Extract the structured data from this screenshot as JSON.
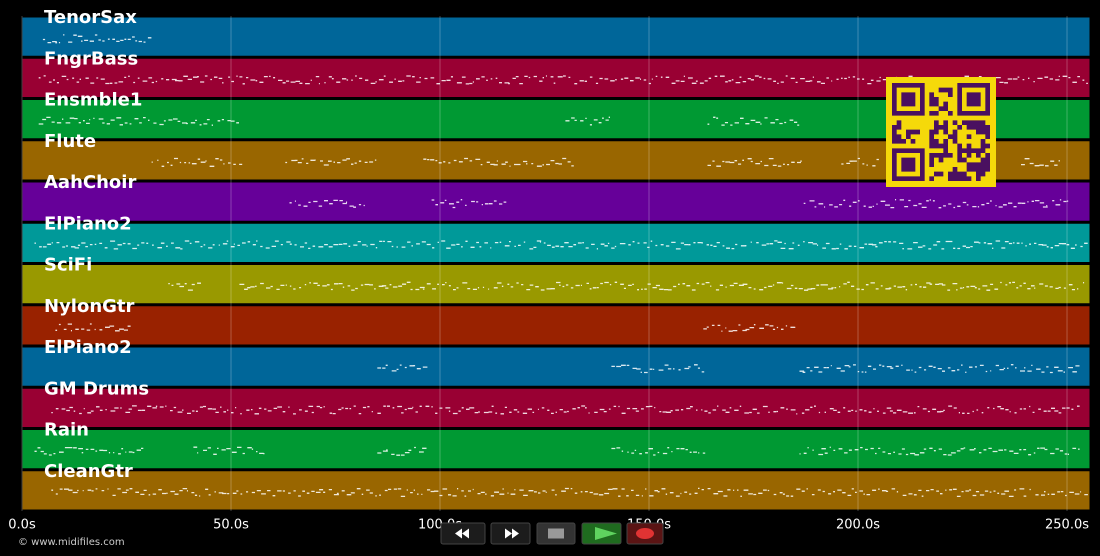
{
  "tracks": [
    {
      "name": "TenorSax",
      "color": "#006699",
      "spans": [
        [
          5,
          31
        ]
      ]
    },
    {
      "name": "FngrBass",
      "color": "#990033",
      "spans": [
        [
          4,
          255
        ]
      ]
    },
    {
      "name": "Ensmble1",
      "color": "#009933",
      "spans": [
        [
          4,
          52
        ],
        [
          130,
          141
        ],
        [
          164,
          187
        ]
      ]
    },
    {
      "name": "Flute",
      "color": "#996600",
      "spans": [
        [
          31,
          53
        ],
        [
          63,
          85
        ],
        [
          96,
          132
        ],
        [
          164,
          187
        ],
        [
          196,
          205
        ],
        [
          239,
          249
        ]
      ]
    },
    {
      "name": "AahChoir",
      "color": "#660099",
      "spans": [
        [
          64,
          82
        ],
        [
          98,
          116
        ],
        [
          187,
          251
        ]
      ]
    },
    {
      "name": "ElPiano2",
      "color": "#009999",
      "spans": [
        [
          3,
          255
        ]
      ]
    },
    {
      "name": "SciFi",
      "color": "#999900",
      "spans": [
        [
          35,
          43
        ],
        [
          52,
          255
        ]
      ]
    },
    {
      "name": "NylonGtr",
      "color": "#992200",
      "spans": [
        [
          8,
          26
        ],
        [
          163,
          185
        ]
      ]
    },
    {
      "name": "ElPiano2",
      "color": "#006699",
      "spans": [
        [
          85,
          97
        ],
        [
          141,
          164
        ],
        [
          186,
          253
        ]
      ]
    },
    {
      "name": "GM Drums",
      "color": "#990033",
      "spans": [
        [
          7,
          253
        ]
      ]
    },
    {
      "name": "Rain",
      "color": "#009933",
      "spans": [
        [
          3,
          29
        ],
        [
          41,
          58
        ],
        [
          85,
          97
        ],
        [
          141,
          164
        ],
        [
          186,
          253
        ]
      ]
    },
    {
      "name": "CleanGtr",
      "color": "#996600",
      "spans": [
        [
          7,
          255
        ]
      ]
    }
  ],
  "timeline": {
    "xlim": [
      0,
      255.5
    ],
    "xticks": [
      {
        "value": 0,
        "label": "0.0s"
      },
      {
        "value": 50,
        "label": "50.0s"
      },
      {
        "value": 100,
        "label": "100.0s"
      },
      {
        "value": 150,
        "label": "150.0s"
      },
      {
        "value": 200,
        "label": "200.0s"
      },
      {
        "value": 250,
        "label": "250.0s"
      }
    ],
    "grid": true
  },
  "footer": {
    "copyright": "© www.midifiles.com"
  }
}
